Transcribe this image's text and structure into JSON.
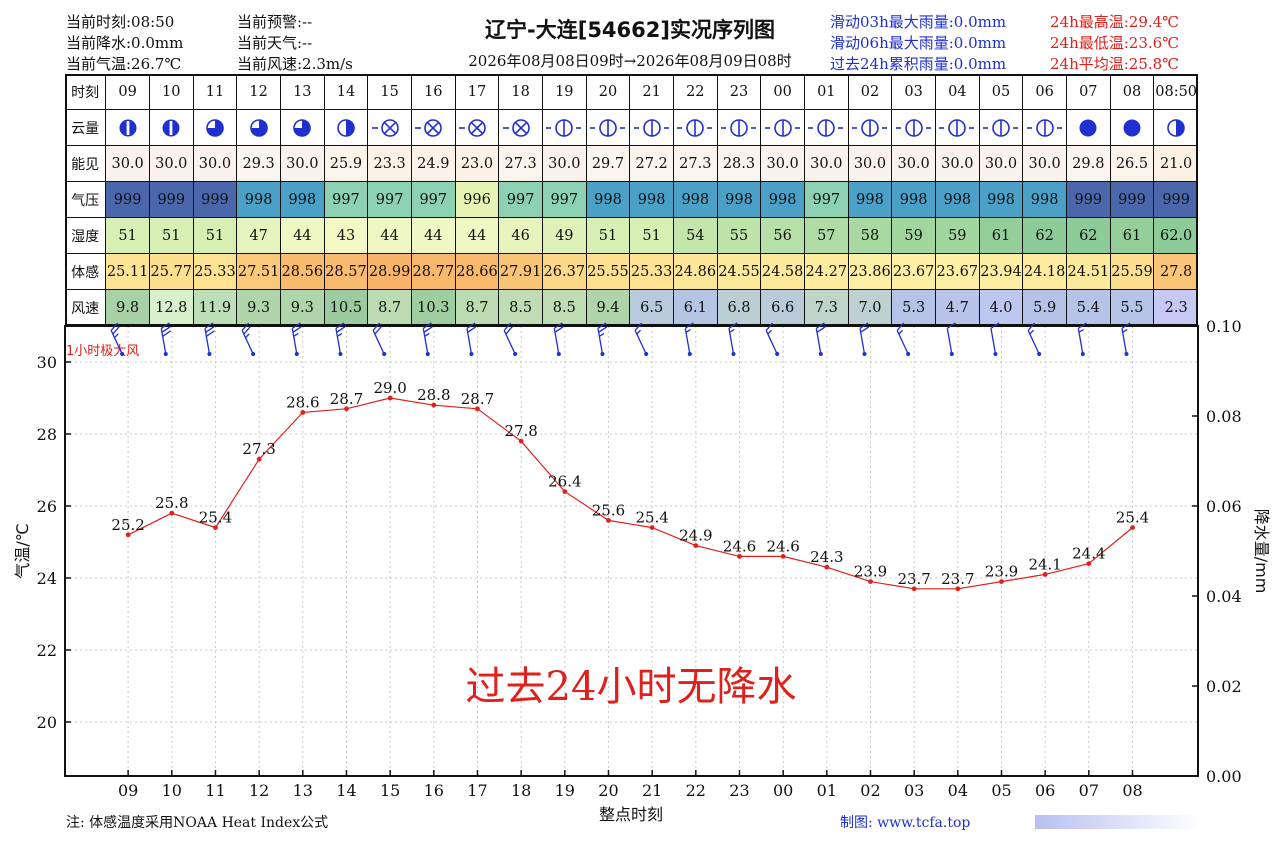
{
  "header": {
    "left": [
      {
        "label": "当前时刻:08:50"
      },
      {
        "label": "当前降水:0.0mm"
      },
      {
        "label": "当前气温:26.7℃"
      }
    ],
    "middle": [
      {
        "label": "当前预警:--"
      },
      {
        "label": "当前天气:--"
      },
      {
        "label": "当前风速:2.3m/s"
      }
    ],
    "title": "辽宁-大连[54662]实况序列图",
    "subtitle": "2026年08月08日09时→2026年08月09日08时",
    "rain_stats": [
      {
        "label": "滑动03h最大雨量:0.0mm"
      },
      {
        "label": "滑动06h最大雨量:0.0mm"
      },
      {
        "label": "过去24h累积雨量:0.0mm"
      }
    ],
    "temp_stats": [
      {
        "label": "24h最高温:29.4℃"
      },
      {
        "label": "24h最低温:23.6℃"
      },
      {
        "label": "24h平均温:25.8℃"
      }
    ]
  },
  "table": {
    "row_labels": [
      "时刻",
      "云量",
      "能见",
      "气压",
      "湿度",
      "体感",
      "风速"
    ],
    "hours": [
      "09",
      "10",
      "11",
      "12",
      "13",
      "14",
      "15",
      "16",
      "17",
      "18",
      "19",
      "20",
      "21",
      "22",
      "23",
      "00",
      "01",
      "02",
      "03",
      "04",
      "05",
      "06",
      "07",
      "08",
      "08:50"
    ],
    "cloud": [
      "fog-heavy",
      "fog-heavy",
      "three-quarter",
      "three-quarter",
      "three-quarter",
      "half",
      "obscured",
      "obscured",
      "obscured",
      "obscured",
      "cloud-low",
      "cloud-low",
      "cloud-low",
      "cloud-low",
      "cloud-low",
      "cloud-low",
      "cloud-low",
      "cloud-low",
      "cloud-low",
      "cloud-low",
      "cloud-low",
      "cloud-low",
      "full",
      "full",
      "half"
    ],
    "visibility": [
      "30.0",
      "30.0",
      "30.0",
      "29.3",
      "30.0",
      "25.9",
      "23.3",
      "24.9",
      "23.0",
      "27.3",
      "30.0",
      "29.7",
      "27.2",
      "27.3",
      "28.3",
      "30.0",
      "30.0",
      "30.0",
      "30.0",
      "30.0",
      "30.0",
      "30.0",
      "29.8",
      "26.5",
      "21.0"
    ],
    "pressure": [
      "999",
      "999",
      "999",
      "998",
      "998",
      "997",
      "997",
      "997",
      "996",
      "997",
      "997",
      "998",
      "998",
      "998",
      "998",
      "998",
      "997",
      "998",
      "998",
      "998",
      "998",
      "998",
      "999",
      "999",
      "999"
    ],
    "humidity": [
      "51",
      "51",
      "51",
      "47",
      "44",
      "43",
      "44",
      "44",
      "44",
      "46",
      "49",
      "51",
      "51",
      "54",
      "55",
      "56",
      "57",
      "58",
      "59",
      "59",
      "61",
      "62",
      "62",
      "61",
      "62.0"
    ],
    "feels_like": [
      "25.11",
      "25.77",
      "25.33",
      "27.51",
      "28.56",
      "28.57",
      "28.99",
      "28.77",
      "28.66",
      "27.91",
      "26.37",
      "25.55",
      "25.33",
      "24.86",
      "24.55",
      "24.58",
      "24.27",
      "23.86",
      "23.67",
      "23.67",
      "23.94",
      "24.18",
      "24.51",
      "25.59",
      "27.8"
    ],
    "wind_speed": [
      "9.8",
      "12.8",
      "11.9",
      "9.3",
      "9.3",
      "10.5",
      "8.7",
      "10.3",
      "8.7",
      "8.5",
      "8.5",
      "9.4",
      "6.5",
      "6.1",
      "6.8",
      "6.6",
      "7.3",
      "7.0",
      "5.3",
      "4.7",
      "4.0",
      "5.9",
      "5.4",
      "5.5",
      "2.3"
    ]
  },
  "colors": {
    "line": "#e0201a",
    "axis": "#111111",
    "grid": "#c8c8c8",
    "wind_barb": "#1f2fd0",
    "stat_blue": "#1f2fd0",
    "stat_red": "#e0201a"
  },
  "chart_data": {
    "type": "line",
    "x": [
      "09",
      "10",
      "11",
      "12",
      "13",
      "14",
      "15",
      "16",
      "17",
      "18",
      "19",
      "20",
      "21",
      "22",
      "23",
      "00",
      "01",
      "02",
      "03",
      "04",
      "05",
      "06",
      "07",
      "08"
    ],
    "series": [
      {
        "values": [
          25.2,
          25.8,
          25.4,
          27.3,
          28.6,
          28.7,
          29.0,
          28.8,
          28.7,
          27.8,
          26.4,
          25.6,
          25.4,
          24.9,
          24.6,
          24.6,
          24.3,
          23.9,
          23.7,
          23.7,
          23.9,
          24.1,
          24.4,
          25.4
        ]
      }
    ],
    "point_labels": [
      "25.2",
      "25.8",
      "25.4",
      "27.3",
      "28.6",
      "28.7",
      "29.0",
      "28.8",
      "28.7",
      "27.8",
      "26.4",
      "25.6",
      "25.4",
      "24.9",
      "24.6",
      "24.6",
      "24.3",
      "23.9",
      "23.7",
      "23.7",
      "23.9",
      "24.1",
      "24.4",
      "25.4"
    ],
    "xlabel": "整点时刻",
    "ylabel": "气温/℃",
    "y2label": "降水量/mm",
    "ylim": [
      18.5,
      31
    ],
    "y_ticks": [
      "20",
      "22",
      "24",
      "26",
      "28",
      "30"
    ],
    "y2lim": [
      0,
      0.1
    ],
    "y2_ticks": [
      "0.00",
      "0.02",
      "0.04",
      "0.06",
      "0.08",
      "0.10"
    ],
    "grid": true,
    "wind_label": "1小时极大风",
    "no_rain_text": "过去24小时无降水"
  },
  "footer": {
    "note": "注: 体感温度采用NOAA Heat Index公式",
    "credit": "制图: www.tcfa.top"
  }
}
